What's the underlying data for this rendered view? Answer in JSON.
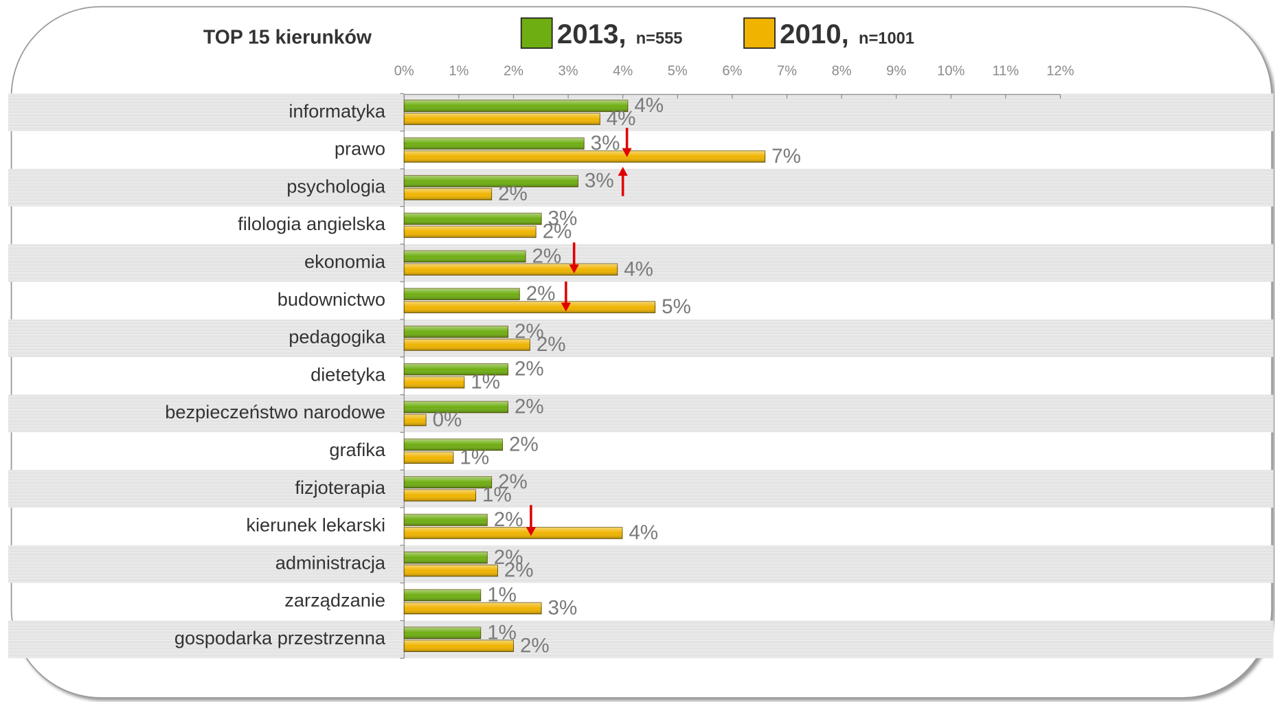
{
  "chart_data": {
    "type": "hbar",
    "title": "TOP 15 kierunków",
    "categories": [
      "informatyka",
      "prawo",
      "psychologia",
      "filologia angielska",
      "ekonomia",
      "budownictwo",
      "pedagogika",
      "dietetyka",
      "bezpieczeństwo narodowe",
      "grafika",
      "fizjoterapia",
      "kierunek lekarski",
      "administracja",
      "zarządzanie",
      "gospodarka przestrzenna"
    ],
    "series": [
      {
        "name": "2013,",
        "sample": "n=555",
        "color": "#6fae12",
        "values": [
          4.09,
          3.29,
          3.18,
          2.51,
          2.22,
          2.11,
          1.9,
          1.9,
          1.9,
          1.8,
          1.6,
          1.52,
          1.52,
          1.4,
          1.4
        ],
        "value_labels": [
          "4%",
          "3%",
          "3%",
          "3%",
          "2%",
          "2%",
          "2%",
          "2%",
          "2%",
          "2%",
          "2%",
          "2%",
          "2%",
          "1%",
          "1%"
        ]
      },
      {
        "name": "2010,",
        "sample": "n=1001",
        "color": "#f0b400",
        "values": [
          3.58,
          6.6,
          1.6,
          2.41,
          3.9,
          4.59,
          2.3,
          1.1,
          0.4,
          0.9,
          1.31,
          3.99,
          1.71,
          2.51,
          2.0
        ],
        "value_labels": [
          "4%",
          "7%",
          "2%",
          "2%",
          "4%",
          "5%",
          "2%",
          "1%",
          "0%",
          "1%",
          "1%",
          "4%",
          "2%",
          "3%",
          "2%"
        ]
      }
    ],
    "xlim": [
      0,
      12
    ],
    "xticks": [
      {
        "value": 0,
        "label": "0%"
      },
      {
        "value": 1,
        "label": "1%"
      },
      {
        "value": 2,
        "label": "2%"
      },
      {
        "value": 3,
        "label": "3%"
      },
      {
        "value": 4,
        "label": "4%"
      },
      {
        "value": 5,
        "label": "5%"
      },
      {
        "value": 6,
        "label": "6%"
      },
      {
        "value": 7,
        "label": "7%"
      },
      {
        "value": 8,
        "label": "8%"
      },
      {
        "value": 9,
        "label": "9%"
      },
      {
        "value": 10,
        "label": "10%"
      },
      {
        "value": 11,
        "label": "11%"
      },
      {
        "value": 12,
        "label": "12%"
      }
    ],
    "legend": "top"
  }
}
